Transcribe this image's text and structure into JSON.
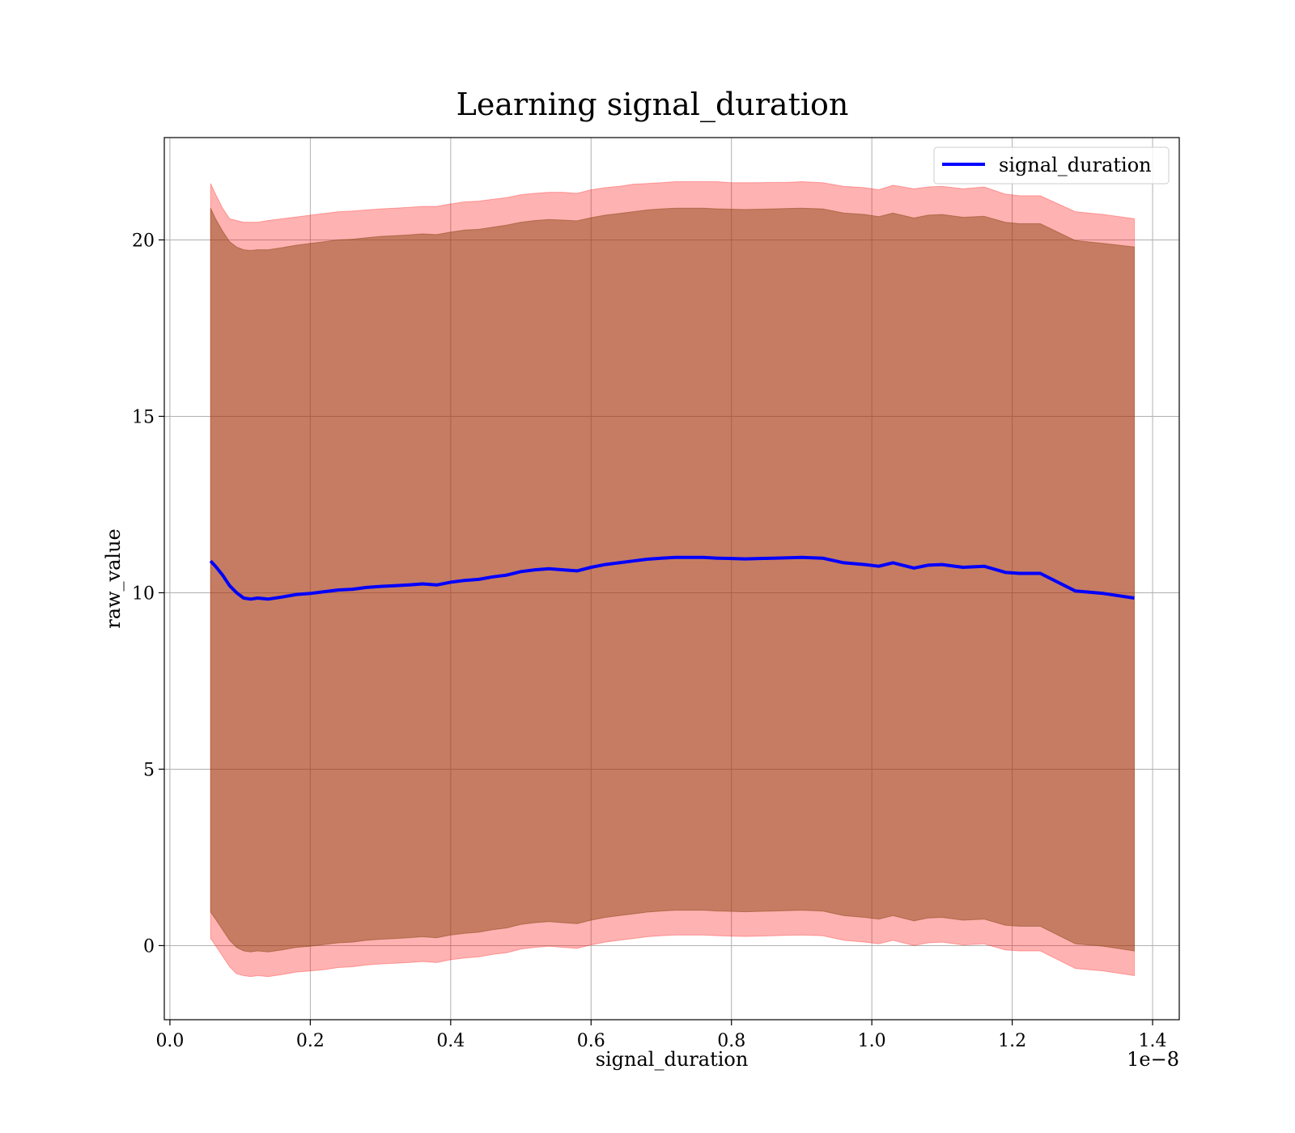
{
  "chart_data": {
    "type": "line",
    "title": "Learning signal_duration",
    "xlabel": "signal_duration",
    "ylabel": "raw_value",
    "x_offset_label": "1e−8",
    "xlim": [
      -0.008,
      1.438
    ],
    "ylim": [
      -2.1,
      22.9
    ],
    "x_ticks": [
      0.0,
      0.2,
      0.4,
      0.6,
      0.8,
      1.0,
      1.2,
      1.4
    ],
    "x_tick_labels": [
      "0.0",
      "0.2",
      "0.4",
      "0.6",
      "0.8",
      "1.0",
      "1.2",
      "1.4"
    ],
    "y_ticks": [
      0,
      5,
      10,
      15,
      20
    ],
    "y_tick_labels": [
      "0",
      "5",
      "10",
      "15",
      "20"
    ],
    "grid": true,
    "legend": {
      "position": "top-right",
      "entries": [
        "signal_duration"
      ]
    },
    "colors": {
      "line": "#0000ff",
      "outer_band": "#ff0000",
      "inner_band": "#8b4513",
      "grid": "#b0b0b0"
    },
    "series": [
      {
        "name": "signal_duration",
        "x": [
          0.058,
          0.065,
          0.075,
          0.085,
          0.095,
          0.105,
          0.115,
          0.125,
          0.14,
          0.16,
          0.18,
          0.2,
          0.22,
          0.24,
          0.26,
          0.28,
          0.3,
          0.32,
          0.34,
          0.36,
          0.38,
          0.4,
          0.42,
          0.44,
          0.46,
          0.48,
          0.5,
          0.52,
          0.54,
          0.56,
          0.58,
          0.6,
          0.62,
          0.64,
          0.66,
          0.68,
          0.7,
          0.72,
          0.74,
          0.76,
          0.78,
          0.8,
          0.82,
          0.84,
          0.86,
          0.88,
          0.9,
          0.93,
          0.96,
          0.99,
          1.01,
          1.03,
          1.06,
          1.08,
          1.1,
          1.13,
          1.16,
          1.19,
          1.21,
          1.24,
          1.29,
          1.33,
          1.374
        ],
        "values": [
          10.9,
          10.75,
          10.5,
          10.2,
          10.0,
          9.85,
          9.82,
          9.85,
          9.82,
          9.88,
          9.95,
          9.98,
          10.03,
          10.08,
          10.1,
          10.15,
          10.18,
          10.2,
          10.22,
          10.25,
          10.22,
          10.3,
          10.35,
          10.38,
          10.45,
          10.5,
          10.6,
          10.65,
          10.68,
          10.65,
          10.62,
          10.72,
          10.8,
          10.85,
          10.9,
          10.95,
          10.98,
          11.0,
          11.0,
          11.0,
          10.98,
          10.97,
          10.96,
          10.97,
          10.98,
          10.99,
          11.0,
          10.98,
          10.85,
          10.8,
          10.75,
          10.85,
          10.7,
          10.78,
          10.8,
          10.72,
          10.75,
          10.58,
          10.55,
          10.55,
          10.05,
          9.98,
          9.85
        ],
        "outer_band": {
          "upper": [
            21.6,
            21.3,
            20.9,
            20.6,
            20.55,
            20.5,
            20.5,
            20.5,
            20.55,
            20.6,
            20.65,
            20.7,
            20.75,
            20.8,
            20.82,
            20.85,
            20.88,
            20.9,
            20.92,
            20.95,
            20.95,
            21.02,
            21.08,
            21.1,
            21.15,
            21.2,
            21.28,
            21.32,
            21.35,
            21.35,
            21.32,
            21.42,
            21.48,
            21.52,
            21.58,
            21.6,
            21.62,
            21.65,
            21.65,
            21.65,
            21.65,
            21.62,
            21.62,
            21.62,
            21.63,
            21.63,
            21.65,
            21.62,
            21.52,
            21.48,
            21.42,
            21.55,
            21.45,
            21.5,
            21.52,
            21.45,
            21.5,
            21.3,
            21.25,
            21.25,
            20.8,
            20.72,
            20.6
          ],
          "lower": [
            0.2,
            0.0,
            -0.3,
            -0.6,
            -0.8,
            -0.85,
            -0.88,
            -0.85,
            -0.88,
            -0.82,
            -0.75,
            -0.72,
            -0.68,
            -0.62,
            -0.6,
            -0.55,
            -0.52,
            -0.5,
            -0.48,
            -0.45,
            -0.48,
            -0.4,
            -0.35,
            -0.32,
            -0.25,
            -0.2,
            -0.1,
            -0.05,
            -0.02,
            -0.05,
            -0.08,
            0.02,
            0.1,
            0.15,
            0.2,
            0.25,
            0.28,
            0.3,
            0.3,
            0.3,
            0.28,
            0.27,
            0.26,
            0.27,
            0.28,
            0.29,
            0.3,
            0.28,
            0.15,
            0.1,
            0.05,
            0.15,
            0.0,
            0.08,
            0.1,
            0.02,
            0.05,
            -0.12,
            -0.15,
            -0.15,
            -0.65,
            -0.72,
            -0.85
          ]
        },
        "inner_band": {
          "upper": [
            20.9,
            20.6,
            20.25,
            19.95,
            19.8,
            19.72,
            19.7,
            19.72,
            19.72,
            19.78,
            19.85,
            19.9,
            19.95,
            20.0,
            20.02,
            20.06,
            20.1,
            20.12,
            20.14,
            20.17,
            20.15,
            20.22,
            20.28,
            20.3,
            20.36,
            20.42,
            20.5,
            20.55,
            20.58,
            20.56,
            20.54,
            20.63,
            20.7,
            20.75,
            20.8,
            20.85,
            20.88,
            20.9,
            20.9,
            20.9,
            20.88,
            20.87,
            20.86,
            20.87,
            20.88,
            20.89,
            20.9,
            20.88,
            20.76,
            20.72,
            20.66,
            20.76,
            20.62,
            20.7,
            20.72,
            20.64,
            20.67,
            20.5,
            20.46,
            20.46,
            19.98,
            19.9,
            19.8
          ],
          "lower": [
            0.95,
            0.75,
            0.45,
            0.15,
            -0.05,
            -0.15,
            -0.18,
            -0.15,
            -0.18,
            -0.12,
            -0.05,
            -0.02,
            0.03,
            0.08,
            0.1,
            0.15,
            0.18,
            0.2,
            0.22,
            0.25,
            0.22,
            0.3,
            0.35,
            0.38,
            0.45,
            0.5,
            0.6,
            0.65,
            0.68,
            0.65,
            0.62,
            0.72,
            0.8,
            0.85,
            0.9,
            0.95,
            0.98,
            1.0,
            1.0,
            1.0,
            0.98,
            0.97,
            0.96,
            0.97,
            0.98,
            0.99,
            1.0,
            0.98,
            0.85,
            0.8,
            0.75,
            0.85,
            0.7,
            0.78,
            0.8,
            0.72,
            0.75,
            0.58,
            0.55,
            0.55,
            0.05,
            -0.02,
            -0.15
          ]
        }
      }
    ]
  }
}
